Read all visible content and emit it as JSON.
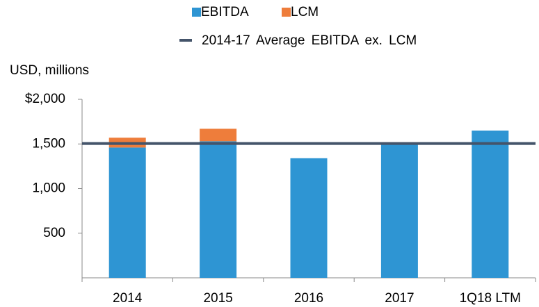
{
  "chart_data": {
    "type": "stacked_bar",
    "y_axis_label": "USD, millions",
    "categories": [
      "2014",
      "2015",
      "2016",
      "2017",
      "1Q18 LTM"
    ],
    "series": [
      {
        "name": "EBITDA",
        "color": "#2e95d3",
        "values": [
          1460,
          1530,
          1340,
          1510,
          1650
        ]
      },
      {
        "name": "LCM",
        "color": "#ee7d3b",
        "values": [
          110,
          140,
          null,
          null,
          null
        ]
      }
    ],
    "reference_line": {
      "name": "2014-17 Average EBITDA ex. LCM",
      "color": "#44546a",
      "value": 1505
    },
    "ylim": [
      0,
      2000
    ],
    "yticks": [
      {
        "value": 2000,
        "label": "$2,000"
      },
      {
        "value": 1500,
        "label": "1,500"
      },
      {
        "value": 1000,
        "label": "1,000"
      },
      500
    ],
    "grid": false
  }
}
